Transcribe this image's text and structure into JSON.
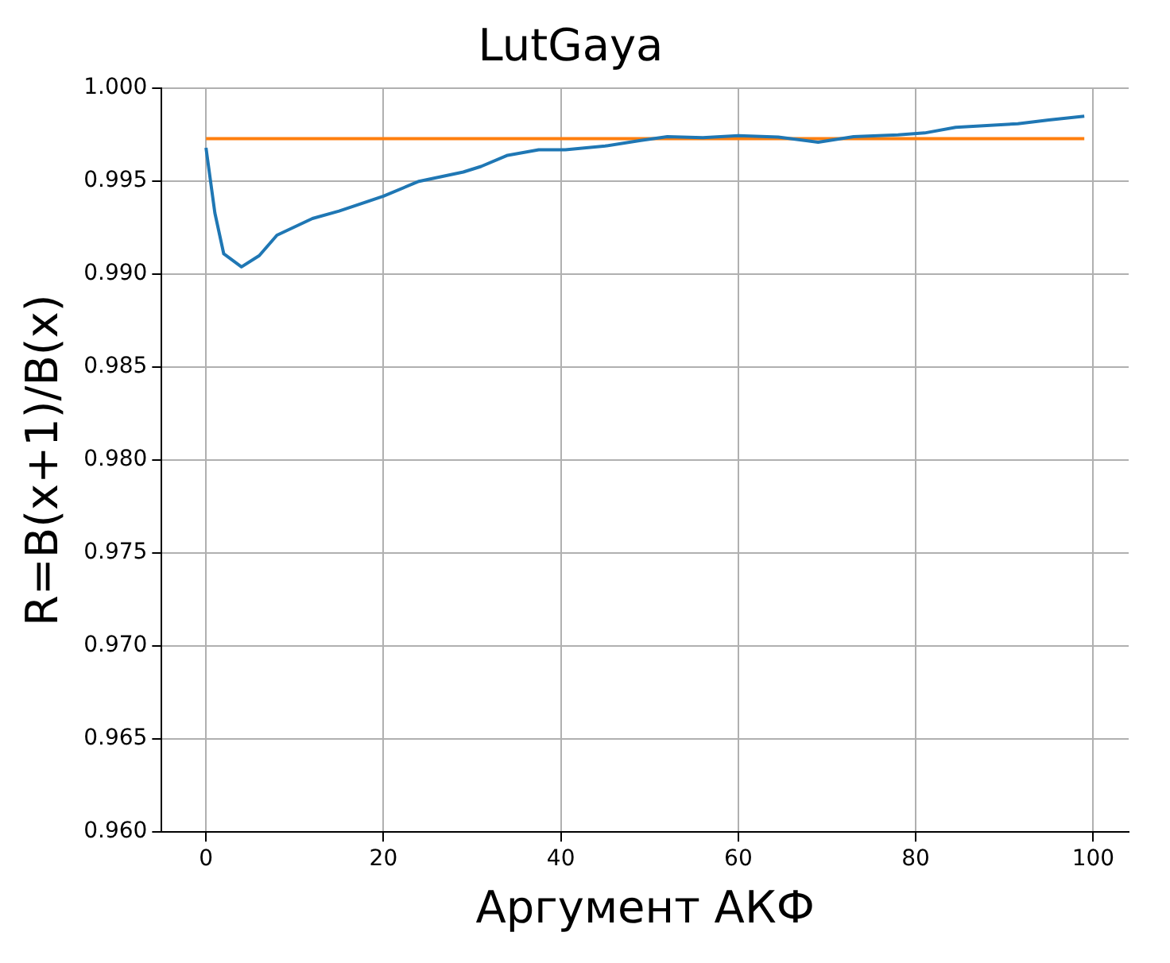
{
  "chart_data": {
    "type": "line",
    "title": "LutGaya",
    "xlabel": "Аргумент АКФ",
    "ylabel": "R=B(x+1)/B(x)",
    "series": [
      {
        "color": "#1f77b4",
        "x": [
          0,
          1,
          2,
          4,
          6,
          8,
          12,
          15,
          20,
          24,
          29,
          31,
          34,
          37.5,
          40.5,
          45,
          49,
          52,
          56,
          60,
          64.5,
          69,
          73,
          78,
          81,
          84.5,
          91.5,
          95,
          99
        ],
        "values": [
          0.9968,
          0.9933,
          0.9911,
          0.9904,
          0.991,
          0.9921,
          0.993,
          0.9934,
          0.9942,
          0.995,
          0.9955,
          0.9958,
          0.9964,
          0.9967,
          0.9967,
          0.9969,
          0.9972,
          0.9974,
          0.99735,
          0.99746,
          0.99738,
          0.9971,
          0.9974,
          0.9975,
          0.9976,
          0.9979,
          0.9981,
          0.9983,
          0.9985
        ]
      },
      {
        "color": "#ff7f0e",
        "x": [
          0,
          99
        ],
        "values": [
          0.9973,
          0.9973
        ]
      }
    ],
    "xlim": [
      -5,
      104
    ],
    "xticks": [
      0,
      20,
      40,
      60,
      80,
      100
    ],
    "ylim": [
      0.96,
      1.0
    ],
    "yticks": [
      {
        "value": 0.96,
        "label": "0.960"
      },
      {
        "value": 0.965,
        "label": "0.965"
      },
      {
        "value": 0.97,
        "label": "0.970"
      },
      {
        "value": 0.975,
        "label": "0.975"
      },
      {
        "value": 0.98,
        "label": "0.980"
      },
      {
        "value": 0.985,
        "label": "0.985"
      },
      {
        "value": 0.99,
        "label": "0.990"
      },
      {
        "value": 0.995,
        "label": "0.995"
      },
      {
        "value": 1.0,
        "label": "1.000"
      }
    ],
    "grid": true,
    "legend": false,
    "marker": "none",
    "line_style": "solid"
  }
}
